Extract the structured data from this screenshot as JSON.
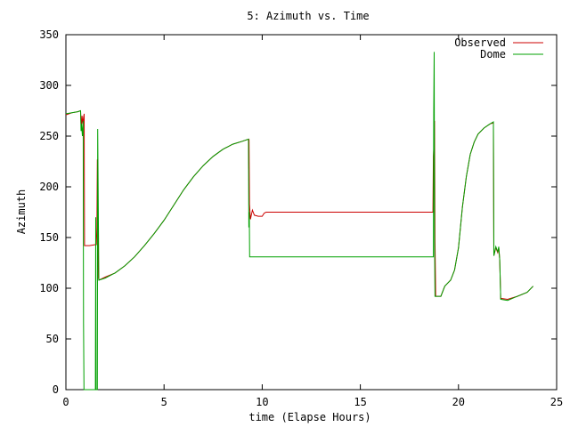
{
  "chart_data": {
    "type": "line",
    "title": "5: Azimuth vs. Time",
    "xlabel": "time (Elapse Hours)",
    "ylabel": "Azimuth",
    "xlim": [
      0,
      25
    ],
    "ylim": [
      0,
      350
    ],
    "xticks": [
      0,
      5,
      10,
      15,
      20,
      25
    ],
    "yticks": [
      0,
      50,
      100,
      150,
      200,
      250,
      300,
      350
    ],
    "grid": false,
    "legend": "top-right",
    "series": [
      {
        "name": "Observed",
        "color": "#cc0000",
        "points": [
          [
            0,
            271
          ],
          [
            0.3,
            273
          ],
          [
            0.6,
            274
          ],
          [
            0.75,
            275
          ],
          [
            0.78,
            256
          ],
          [
            0.82,
            270
          ],
          [
            0.86,
            262
          ],
          [
            0.9,
            268
          ],
          [
            0.93,
            272
          ],
          [
            0.95,
            142
          ],
          [
            1.2,
            142
          ],
          [
            1.5,
            143
          ],
          [
            1.55,
            143
          ],
          [
            1.58,
            160
          ],
          [
            1.6,
            227
          ],
          [
            1.62,
            195
          ],
          [
            1.66,
            110
          ],
          [
            1.68,
            108
          ],
          [
            2.0,
            111
          ],
          [
            2.5,
            115
          ],
          [
            3.0,
            122
          ],
          [
            3.5,
            131
          ],
          [
            4.0,
            142
          ],
          [
            4.5,
            154
          ],
          [
            5.0,
            167
          ],
          [
            5.5,
            182
          ],
          [
            6.0,
            197
          ],
          [
            6.5,
            210
          ],
          [
            7.0,
            221
          ],
          [
            7.5,
            230
          ],
          [
            8.0,
            237
          ],
          [
            8.5,
            242
          ],
          [
            9.0,
            245
          ],
          [
            9.3,
            247
          ],
          [
            9.32,
            218
          ],
          [
            9.33,
            247
          ],
          [
            9.35,
            183
          ],
          [
            9.4,
            168
          ],
          [
            9.5,
            177
          ],
          [
            9.6,
            172
          ],
          [
            9.8,
            171
          ],
          [
            10.0,
            171
          ],
          [
            10.1,
            174
          ],
          [
            10.2,
            175
          ],
          [
            12.0,
            175
          ],
          [
            15.0,
            175
          ],
          [
            18.0,
            175
          ],
          [
            18.7,
            175
          ],
          [
            18.72,
            230
          ],
          [
            18.75,
            242
          ],
          [
            18.78,
            265
          ],
          [
            18.8,
            148
          ],
          [
            18.84,
            92
          ],
          [
            19.1,
            92
          ],
          [
            19.3,
            102
          ],
          [
            19.6,
            108
          ],
          [
            19.8,
            118
          ],
          [
            20.0,
            140
          ],
          [
            20.2,
            180
          ],
          [
            20.4,
            210
          ],
          [
            20.6,
            232
          ],
          [
            20.8,
            244
          ],
          [
            21.0,
            252
          ],
          [
            21.3,
            258
          ],
          [
            21.6,
            262
          ],
          [
            21.78,
            263
          ],
          [
            21.8,
            132
          ],
          [
            21.9,
            140
          ],
          [
            22.0,
            135
          ],
          [
            22.05,
            140
          ],
          [
            22.1,
            128
          ],
          [
            22.15,
            90
          ],
          [
            22.5,
            89
          ],
          [
            23.0,
            92
          ],
          [
            23.5,
            96
          ],
          [
            23.8,
            102
          ]
        ]
      },
      {
        "name": "Dome",
        "color": "#00a000",
        "points": [
          [
            0,
            272
          ],
          [
            0.3,
            273
          ],
          [
            0.6,
            274
          ],
          [
            0.75,
            275
          ],
          [
            0.77,
            255
          ],
          [
            0.8,
            262
          ],
          [
            0.84,
            250
          ],
          [
            0.88,
            265
          ],
          [
            0.9,
            65
          ],
          [
            0.92,
            0
          ],
          [
            1.5,
            0
          ],
          [
            1.52,
            170
          ],
          [
            1.54,
            0
          ],
          [
            1.6,
            0
          ],
          [
            1.62,
            257
          ],
          [
            1.65,
            175
          ],
          [
            1.68,
            108
          ],
          [
            2.0,
            110
          ],
          [
            2.5,
            115
          ],
          [
            3.0,
            122
          ],
          [
            3.5,
            131
          ],
          [
            4.0,
            142
          ],
          [
            4.5,
            154
          ],
          [
            5.0,
            167
          ],
          [
            5.5,
            182
          ],
          [
            6.0,
            197
          ],
          [
            6.5,
            210
          ],
          [
            7.0,
            221
          ],
          [
            7.5,
            230
          ],
          [
            8.0,
            237
          ],
          [
            8.5,
            242
          ],
          [
            9.0,
            245
          ],
          [
            9.3,
            247
          ],
          [
            9.32,
            160
          ],
          [
            9.34,
            175
          ],
          [
            9.36,
            131
          ],
          [
            12.0,
            131
          ],
          [
            15.0,
            131
          ],
          [
            18.0,
            131
          ],
          [
            18.72,
            131
          ],
          [
            18.74,
            275
          ],
          [
            18.76,
            333
          ],
          [
            18.78,
            150
          ],
          [
            18.8,
            92
          ],
          [
            19.1,
            92
          ],
          [
            19.3,
            102
          ],
          [
            19.6,
            108
          ],
          [
            19.8,
            118
          ],
          [
            20.0,
            140
          ],
          [
            20.2,
            180
          ],
          [
            20.4,
            210
          ],
          [
            20.6,
            232
          ],
          [
            20.8,
            244
          ],
          [
            21.0,
            252
          ],
          [
            21.3,
            258
          ],
          [
            21.6,
            262
          ],
          [
            21.78,
            264
          ],
          [
            21.8,
            132
          ],
          [
            21.9,
            141
          ],
          [
            22.0,
            136
          ],
          [
            22.05,
            141
          ],
          [
            22.1,
            128
          ],
          [
            22.15,
            89
          ],
          [
            22.5,
            88
          ],
          [
            23.0,
            92
          ],
          [
            23.5,
            96
          ],
          [
            23.8,
            102
          ]
        ]
      }
    ]
  }
}
